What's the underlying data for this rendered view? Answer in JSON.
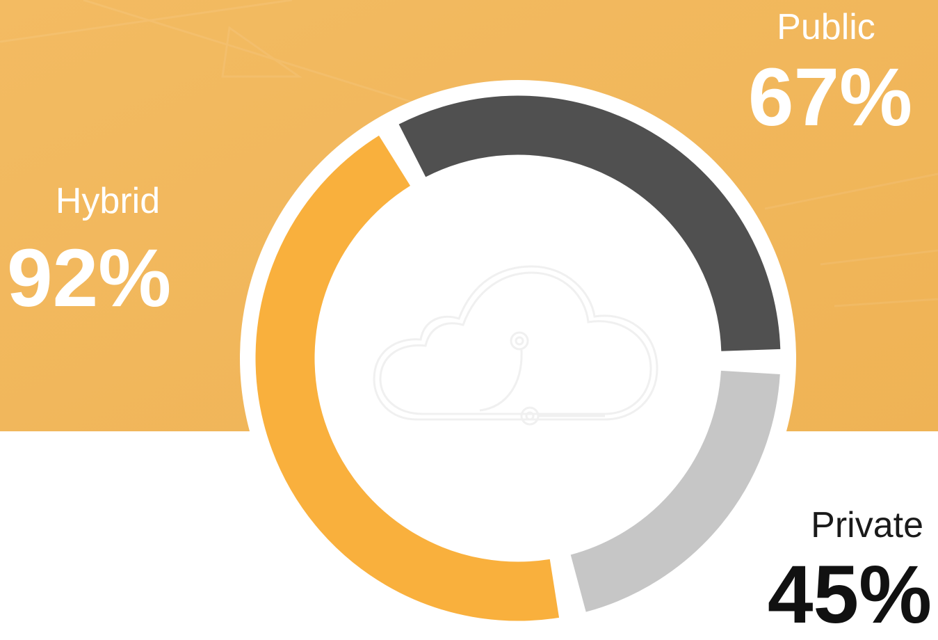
{
  "segments": [
    {
      "label": "Public",
      "value": "67%"
    },
    {
      "label": "Hybrid",
      "value": "92%"
    },
    {
      "label": "Private",
      "value": "45%"
    }
  ]
}
